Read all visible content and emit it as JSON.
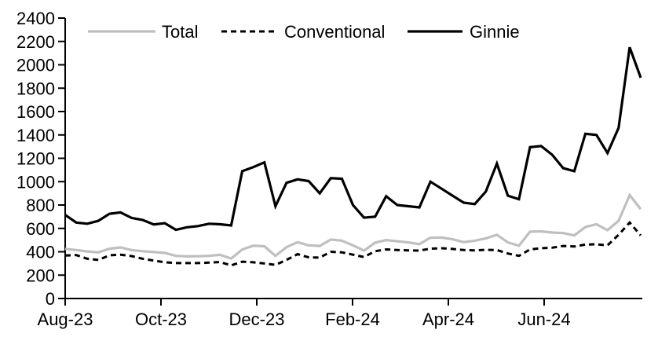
{
  "chart_data": {
    "type": "line",
    "title": "",
    "x_axis": {
      "tick_labels": [
        "Aug-23",
        "Oct-23",
        "Dec-23",
        "Feb-24",
        "Apr-24",
        "Jun-24"
      ],
      "frequency": "weekly"
    },
    "y_axis": {
      "min": 0,
      "max": 2400,
      "step": 200,
      "tick_labels": [
        "0",
        "200",
        "400",
        "600",
        "800",
        "1000",
        "1200",
        "1400",
        "1600",
        "1800",
        "2000",
        "2200",
        "2400"
      ]
    },
    "grid": "off",
    "legend": {
      "position": "top",
      "items": [
        "Total",
        "Conventional",
        "Ginnie"
      ]
    },
    "colors": {
      "total": "#bfbfbf",
      "conventional": "#000000",
      "ginnie": "#000000",
      "axis": "#000000"
    },
    "series": [
      {
        "name": "Total",
        "color": "#bfbfbf",
        "style": "solid",
        "values": [
          425,
          415,
          403,
          395,
          426,
          437,
          415,
          405,
          398,
          390,
          365,
          360,
          362,
          365,
          374,
          342,
          420,
          452,
          447,
          365,
          440,
          482,
          455,
          450,
          505,
          495,
          455,
          410,
          478,
          500,
          490,
          480,
          465,
          520,
          522,
          507,
          483,
          495,
          515,
          545,
          480,
          452,
          572,
          575,
          565,
          560,
          540,
          612,
          635,
          585,
          665,
          885,
          765
        ]
      },
      {
        "name": "Conventional",
        "color": "#000000",
        "style": "dashed",
        "values": [
          368,
          372,
          340,
          330,
          370,
          375,
          363,
          340,
          325,
          310,
          303,
          303,
          303,
          307,
          312,
          283,
          315,
          310,
          300,
          288,
          330,
          380,
          352,
          350,
          400,
          395,
          375,
          355,
          405,
          420,
          415,
          412,
          410,
          426,
          430,
          424,
          415,
          412,
          417,
          415,
          385,
          365,
          420,
          430,
          435,
          450,
          445,
          462,
          464,
          455,
          545,
          650,
          540
        ]
      },
      {
        "name": "Ginnie",
        "color": "#000000",
        "style": "solid",
        "values": [
          715,
          650,
          640,
          665,
          725,
          737,
          690,
          672,
          634,
          645,
          588,
          610,
          620,
          640,
          635,
          625,
          1090,
          1125,
          1165,
          790,
          990,
          1020,
          1005,
          900,
          1030,
          1025,
          800,
          692,
          700,
          875,
          800,
          790,
          780,
          1000,
          940,
          880,
          820,
          808,
          915,
          1155,
          880,
          850,
          1295,
          1305,
          1230,
          1115,
          1090,
          1410,
          1400,
          1245,
          1460,
          2150,
          1890
        ]
      }
    ]
  }
}
